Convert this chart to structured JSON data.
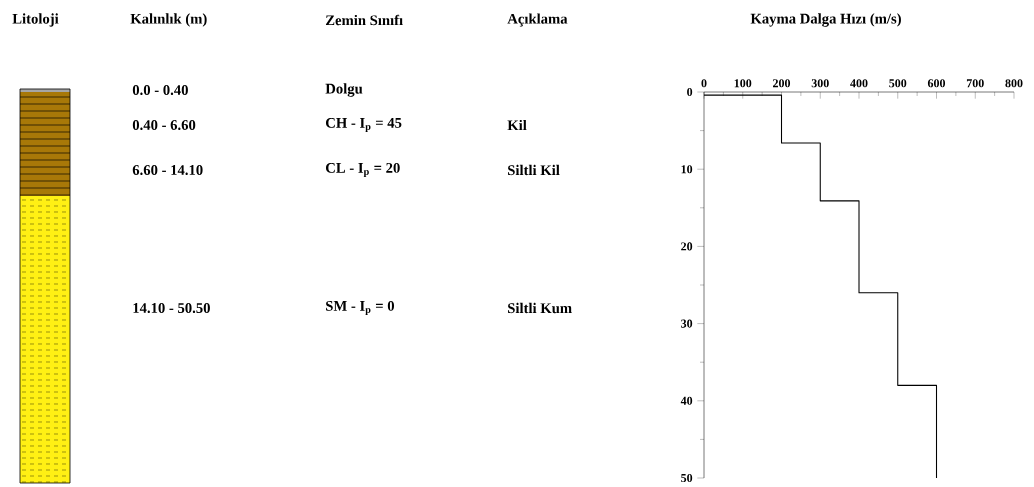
{
  "chart_data": [
    {
      "type": "other",
      "annotations": [
        "Litoloji",
        "Kalınlık (m)",
        "Zemin Sınıfı",
        "Açıklama",
        "0.0 - 0.40",
        "Dolgu",
        "0.40 - 6.60",
        "CH - I$_{p}$ = 45",
        "Kil",
        "6.60 - 14.10",
        "CL - I$_{p}$ = 20",
        "Siltli Kil",
        "14.10 - 50.50",
        "SM - I$_{p}$ = 0",
        "Siltli Kum"
      ]
    },
    {
      "type": "line",
      "title": "Kayma Dalga Hızı (m/s)",
      "xlim": [
        0,
        800
      ],
      "xticks": [
        0,
        100,
        200,
        300,
        400,
        500,
        600,
        700,
        800
      ],
      "ylim": [
        50,
        0
      ],
      "yticks": [
        0,
        10,
        20,
        30,
        40,
        50
      ],
      "series": [
        {
          "color": "#000000",
          "x": [
            0,
            200,
            200,
            300,
            300,
            400,
            400,
            500,
            500,
            600,
            600
          ],
          "values": [
            0.4,
            0.4,
            6.6,
            6.6,
            14.1,
            14.1,
            26,
            26,
            38,
            38,
            50
          ]
        }
      ]
    }
  ]
}
